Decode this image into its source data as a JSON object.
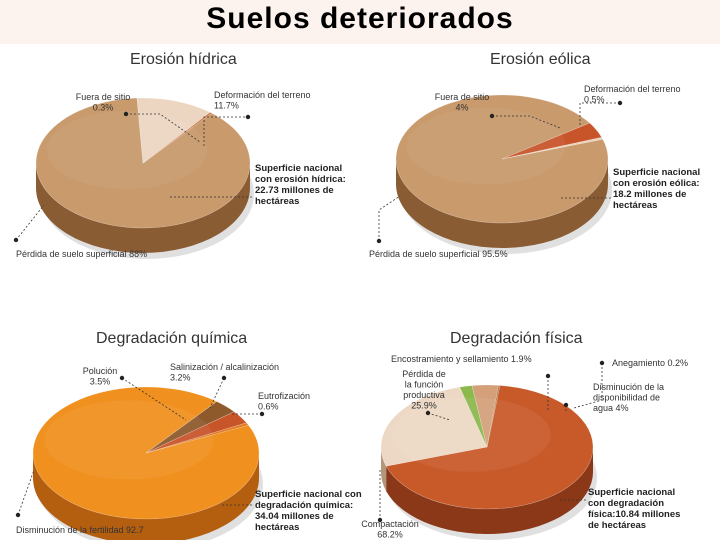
{
  "page": {
    "title": "Suelos deteriorados"
  },
  "chart_data": [
    {
      "type": "pie",
      "title": "Erosión hídrica",
      "slices": [
        {
          "name": "Pérdida de suelo superficial",
          "value": 88.0,
          "label": "Pérdida de suelo superficial 88%",
          "color": "#c89a6c",
          "side": "#8a5c34"
        },
        {
          "name": "Deformación del terreno",
          "value": 11.7,
          "label_lines": [
            "Deformación del terreno",
            "11.7%"
          ],
          "color": "#ecd6c2",
          "side": "#b69478"
        },
        {
          "name": "Fuera de sitio",
          "value": 0.3,
          "label_lines": [
            "Fuera de sitio",
            "0.3%"
          ],
          "color": "#c86a3a",
          "side": "#8a4422"
        }
      ],
      "note": [
        "Superficie nacional",
        "con erosión hídrica:",
        "22.73 millones de",
        "hectáreas"
      ]
    },
    {
      "type": "pie",
      "title": "Erosión eólica",
      "slices": [
        {
          "name": "Pérdida de suelo superficial",
          "value": 95.5,
          "label": "Pérdida de suelo superficial 95.5%",
          "color": "#c89a6c",
          "side": "#8a5c34"
        },
        {
          "name": "Fuera de sitio",
          "value": 4.0,
          "label_lines": [
            "Fuera de sitio",
            "4%"
          ],
          "color": "#c8542a",
          "side": "#8a3418"
        },
        {
          "name": "Deformación del terreno",
          "value": 0.5,
          "label_lines": [
            "Deformación del terreno",
            "0.5%"
          ],
          "color": "#e8d0b8",
          "side": "#b09070"
        }
      ],
      "note": [
        "Superficie nacional",
        "con erosión eólica:",
        "18.2 millones de",
        "hectáreas"
      ]
    },
    {
      "type": "pie",
      "title": "Degradación química",
      "slices": [
        {
          "name": "Disminución de la fertilidad",
          "value": 92.7,
          "label": "Disminución de la fertilidad 92.7",
          "color": "#f0901e",
          "side": "#b45e10"
        },
        {
          "name": "Polución",
          "value": 3.5,
          "label_lines": [
            "Polución",
            "3.5%"
          ],
          "color": "#8e5a2c",
          "side": "#5e3818"
        },
        {
          "name": "Salinización / alcalinización",
          "value": 3.2,
          "label_lines": [
            "Salinización / alcalinización",
            "3.2%"
          ],
          "color": "#c8542a",
          "side": "#8a3418"
        },
        {
          "name": "Eutrofización",
          "value": 0.6,
          "label_lines": [
            "Eutrofización",
            "0.6%"
          ],
          "color": "#e07a24",
          "side": "#a0501a"
        }
      ],
      "note": [
        "Superficie nacional con",
        "degradación química:",
        "34.04 millones de",
        "hectáreas"
      ]
    },
    {
      "type": "pie",
      "title": "Degradación física",
      "slices": [
        {
          "name": "Compactación",
          "value": 68.2,
          "label_lines": [
            "Compactación",
            "68.2%"
          ],
          "color": "#c85a2a",
          "side": "#8a3818"
        },
        {
          "name": "Pérdida de la función productiva",
          "value": 25.9,
          "label_lines": [
            "Pérdida de",
            "la función",
            "productiva",
            "25.9%"
          ],
          "color": "#ecd8c4",
          "side": "#b4967a"
        },
        {
          "name": "Encostramiento y sellamiento",
          "value": 1.9,
          "label": "Encostramiento y sellamiento 1.9%",
          "color": "#8cb84c",
          "side": "#5e8230"
        },
        {
          "name": "Disminución de la disponibilidad de agua",
          "value": 4.0,
          "label_lines": [
            "Disminución de la",
            "disponibilidad de",
            "agua 4%"
          ],
          "color": "#d4a07a",
          "side": "#9a6a48"
        },
        {
          "name": "Anegamiento",
          "value": 0.2,
          "label": "Anegamiento 0.2%",
          "color": "#a86a3a",
          "side": "#704424"
        }
      ],
      "note": [
        "Superficie nacional",
        "con degradación",
        "física:10.84 millones",
        "de hectáreas"
      ]
    }
  ]
}
